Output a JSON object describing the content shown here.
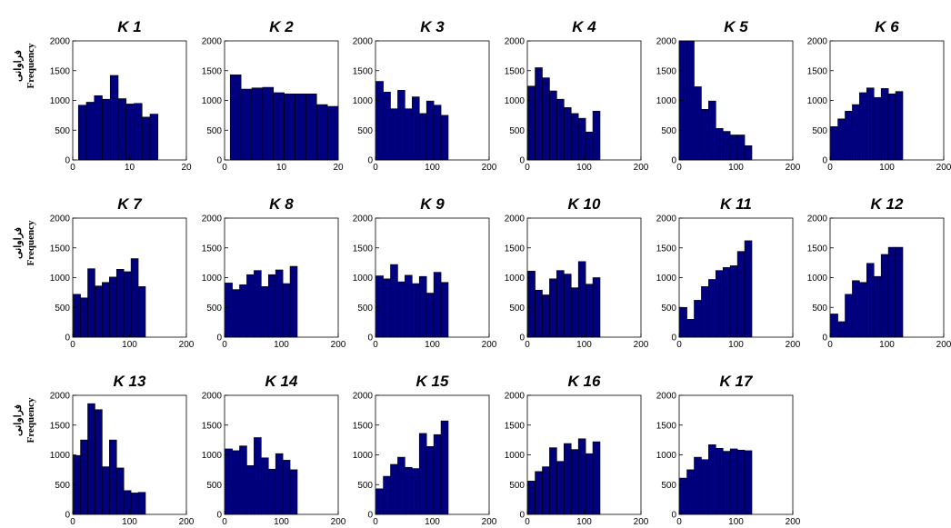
{
  "chart_data": [
    {
      "type": "histogram",
      "title": "K 1",
      "ylabel": "Frequency",
      "ylabel_fa": "فراوانی",
      "bins": [
        1,
        2.4,
        3.8,
        5.2,
        6.6,
        8,
        9.4,
        10.8,
        12.2,
        13.6,
        15
      ],
      "values": [
        920,
        970,
        1080,
        1020,
        1420,
        1030,
        940,
        950,
        720,
        770
      ],
      "color": "#00007f",
      "xlim": [
        0,
        20
      ],
      "xticks": [
        0,
        10,
        20
      ],
      "ylim": [
        0,
        2000
      ],
      "yticks": [
        0,
        500,
        1000,
        1500,
        2000
      ]
    },
    {
      "type": "histogram",
      "title": "K 2",
      "bins": [
        1,
        2.9,
        4.8,
        6.7,
        8.6,
        10.5,
        12.4,
        14.3,
        16.2,
        18.1,
        20
      ],
      "values": [
        1430,
        1190,
        1210,
        1220,
        1130,
        1110,
        1110,
        1110,
        930,
        900
      ],
      "color": "#00007f",
      "xlim": [
        0,
        20
      ],
      "xticks": [
        0,
        10,
        20
      ],
      "ylim": [
        0,
        2000
      ],
      "yticks": [
        0,
        500,
        1000,
        1500,
        2000
      ]
    },
    {
      "type": "histogram",
      "title": "K 3",
      "bins": [
        1,
        13.7,
        26.4,
        39.1,
        51.8,
        64.5,
        77.2,
        89.9,
        102.6,
        115.3,
        128
      ],
      "values": [
        1320,
        1140,
        860,
        1170,
        860,
        1060,
        780,
        990,
        920,
        750
      ],
      "color": "#00007f",
      "xlim": [
        0,
        200
      ],
      "xticks": [
        0,
        100,
        200
      ],
      "ylim": [
        0,
        2000
      ],
      "yticks": [
        0,
        500,
        1000,
        1500,
        2000
      ]
    },
    {
      "type": "histogram",
      "title": "K 4",
      "bins": [
        1,
        13.7,
        26.4,
        39.1,
        51.8,
        64.5,
        77.2,
        89.9,
        102.6,
        115.3,
        128
      ],
      "values": [
        1240,
        1550,
        1380,
        1160,
        1020,
        880,
        780,
        700,
        470,
        820
      ],
      "color": "#00007f",
      "xlim": [
        0,
        200
      ],
      "xticks": [
        0,
        100,
        200
      ],
      "ylim": [
        0,
        2000
      ],
      "yticks": [
        0,
        500,
        1000,
        1500,
        2000
      ]
    },
    {
      "type": "histogram",
      "title": "K 5",
      "bins": [
        1,
        13.7,
        26.4,
        39.1,
        51.8,
        64.5,
        77.2,
        89.9,
        102.6,
        115.3,
        128
      ],
      "values": [
        2000,
        2000,
        1230,
        850,
        990,
        530,
        480,
        420,
        420,
        240
      ],
      "color": "#00007f",
      "xlim": [
        0,
        200
      ],
      "xticks": [
        0,
        100,
        200
      ],
      "ylim": [
        0,
        2000
      ],
      "yticks": [
        0,
        500,
        1000,
        1500,
        2000
      ]
    },
    {
      "type": "histogram",
      "title": "K 6",
      "bins": [
        1,
        13.7,
        26.4,
        39.1,
        51.8,
        64.5,
        77.2,
        89.9,
        102.6,
        115.3,
        128
      ],
      "values": [
        560,
        690,
        820,
        930,
        1130,
        1210,
        1050,
        1200,
        1110,
        1150
      ],
      "color": "#00007f",
      "xlim": [
        0,
        200
      ],
      "xticks": [
        0,
        100,
        200
      ],
      "ylim": [
        0,
        2000
      ],
      "yticks": [
        0,
        500,
        1000,
        1500,
        2000
      ]
    },
    {
      "type": "histogram",
      "title": "K 7",
      "ylabel": "Frequency",
      "ylabel_fa": "فراوانی",
      "bins": [
        1,
        13.7,
        26.4,
        39.1,
        51.8,
        64.5,
        77.2,
        89.9,
        102.6,
        115.3,
        128
      ],
      "values": [
        720,
        660,
        1150,
        860,
        920,
        1010,
        1140,
        1100,
        1320,
        850
      ],
      "color": "#00007f",
      "xlim": [
        0,
        200
      ],
      "xticks": [
        0,
        100,
        200
      ],
      "ylim": [
        0,
        2000
      ],
      "yticks": [
        0,
        500,
        1000,
        1500,
        2000
      ]
    },
    {
      "type": "histogram",
      "title": "K 8",
      "bins": [
        1,
        13.7,
        26.4,
        39.1,
        51.8,
        64.5,
        77.2,
        89.9,
        102.6,
        115.3,
        128
      ],
      "values": [
        910,
        800,
        880,
        1050,
        1120,
        850,
        1050,
        1130,
        900,
        1190
      ],
      "color": "#00007f",
      "xlim": [
        0,
        200
      ],
      "xticks": [
        0,
        100,
        200
      ],
      "ylim": [
        0,
        2000
      ],
      "yticks": [
        0,
        500,
        1000,
        1500,
        2000
      ]
    },
    {
      "type": "histogram",
      "title": "K 9",
      "bins": [
        1,
        13.7,
        26.4,
        39.1,
        51.8,
        64.5,
        77.2,
        89.9,
        102.6,
        115.3,
        128
      ],
      "values": [
        1030,
        980,
        1220,
        930,
        1040,
        900,
        1020,
        740,
        1090,
        920
      ],
      "color": "#00007f",
      "xlim": [
        0,
        200
      ],
      "xticks": [
        0,
        100,
        200
      ],
      "ylim": [
        0,
        2000
      ],
      "yticks": [
        0,
        500,
        1000,
        1500,
        2000
      ]
    },
    {
      "type": "histogram",
      "title": "K 10",
      "bins": [
        1,
        13.7,
        26.4,
        39.1,
        51.8,
        64.5,
        77.2,
        89.9,
        102.6,
        115.3,
        128
      ],
      "values": [
        1110,
        790,
        710,
        980,
        1120,
        1060,
        830,
        1270,
        890,
        1000
      ],
      "color": "#00007f",
      "xlim": [
        0,
        200
      ],
      "xticks": [
        0,
        100,
        200
      ],
      "ylim": [
        0,
        2000
      ],
      "yticks": [
        0,
        500,
        1000,
        1500,
        2000
      ]
    },
    {
      "type": "histogram",
      "title": "K 11",
      "bins": [
        1,
        13.7,
        26.4,
        39.1,
        51.8,
        64.5,
        77.2,
        89.9,
        102.6,
        115.3,
        128
      ],
      "values": [
        500,
        300,
        620,
        850,
        970,
        1120,
        1170,
        1200,
        1440,
        1620
      ],
      "color": "#00007f",
      "xlim": [
        0,
        200
      ],
      "xticks": [
        0,
        100,
        200
      ],
      "ylim": [
        0,
        2000
      ],
      "yticks": [
        0,
        500,
        1000,
        1500,
        2000
      ]
    },
    {
      "type": "histogram",
      "title": "K 12",
      "bins": [
        1,
        13.7,
        26.4,
        39.1,
        51.8,
        64.5,
        77.2,
        89.9,
        102.6,
        115.3,
        128
      ],
      "values": [
        390,
        260,
        720,
        950,
        920,
        1240,
        1020,
        1390,
        1510,
        1510
      ],
      "color": "#00007f",
      "xlim": [
        0,
        200
      ],
      "xticks": [
        0,
        100,
        200
      ],
      "ylim": [
        0,
        2000
      ],
      "yticks": [
        0,
        500,
        1000,
        1500,
        2000
      ]
    },
    {
      "type": "histogram",
      "title": "K 13",
      "ylabel": "Frequency",
      "ylabel_fa": "فراوانی",
      "bins": [
        1,
        13.7,
        26.4,
        39.1,
        51.8,
        64.5,
        77.2,
        89.9,
        102.6,
        115.3,
        128
      ],
      "values": [
        990,
        1250,
        1860,
        1760,
        800,
        1250,
        780,
        400,
        360,
        370
      ],
      "color": "#00007f",
      "xlim": [
        0,
        200
      ],
      "xticks": [
        0,
        100,
        200
      ],
      "ylim": [
        0,
        2000
      ],
      "yticks": [
        0,
        500,
        1000,
        1500,
        2000
      ]
    },
    {
      "type": "histogram",
      "title": "K 14",
      "bins": [
        1,
        13.7,
        26.4,
        39.1,
        51.8,
        64.5,
        77.2,
        89.9,
        102.6,
        115.3,
        128
      ],
      "values": [
        1100,
        1070,
        1150,
        820,
        1290,
        950,
        760,
        1020,
        910,
        750
      ],
      "color": "#00007f",
      "xlim": [
        0,
        200
      ],
      "xticks": [
        0,
        100,
        200
      ],
      "ylim": [
        0,
        2000
      ],
      "yticks": [
        0,
        500,
        1000,
        1500,
        2000
      ]
    },
    {
      "type": "histogram",
      "title": "K 15",
      "bins": [
        1,
        13.7,
        26.4,
        39.1,
        51.8,
        64.5,
        77.2,
        89.9,
        102.6,
        115.3,
        128
      ],
      "values": [
        430,
        640,
        840,
        960,
        790,
        770,
        1360,
        1140,
        1340,
        1570
      ],
      "color": "#00007f",
      "xlim": [
        0,
        200
      ],
      "xticks": [
        0,
        100,
        200
      ],
      "ylim": [
        0,
        2000
      ],
      "yticks": [
        0,
        500,
        1000,
        1500,
        2000
      ]
    },
    {
      "type": "histogram",
      "title": "K 16",
      "bins": [
        1,
        13.7,
        26.4,
        39.1,
        51.8,
        64.5,
        77.2,
        89.9,
        102.6,
        115.3,
        128
      ],
      "values": [
        560,
        720,
        800,
        1120,
        890,
        1190,
        1090,
        1270,
        1020,
        1220
      ],
      "color": "#00007f",
      "xlim": [
        0,
        200
      ],
      "xticks": [
        0,
        100,
        200
      ],
      "ylim": [
        0,
        2000
      ],
      "yticks": [
        0,
        500,
        1000,
        1500,
        2000
      ]
    },
    {
      "type": "histogram",
      "title": "K 17",
      "bins": [
        1,
        13.7,
        26.4,
        39.1,
        51.8,
        64.5,
        77.2,
        89.9,
        102.6,
        115.3,
        128
      ],
      "values": [
        610,
        750,
        960,
        920,
        1170,
        1110,
        1060,
        1100,
        1080,
        1070
      ],
      "color": "#00007f",
      "xlim": [
        0,
        200
      ],
      "xticks": [
        0,
        100,
        200
      ],
      "ylim": [
        0,
        2000
      ],
      "yticks": [
        0,
        500,
        1000,
        1500,
        2000
      ]
    }
  ]
}
